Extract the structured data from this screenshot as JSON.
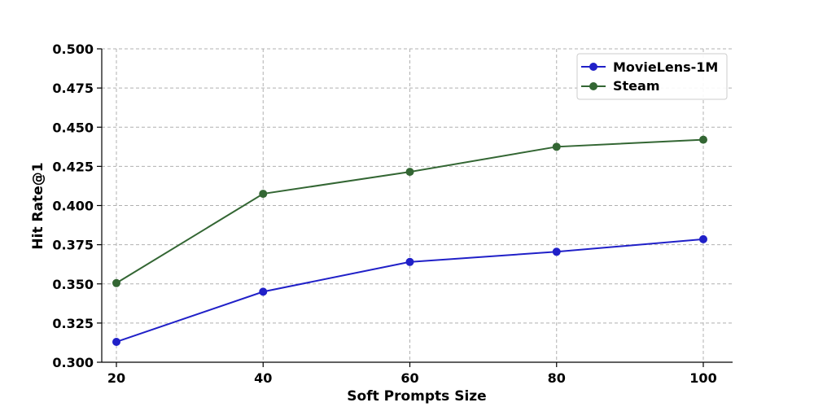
{
  "chart_data": {
    "type": "line",
    "title": "",
    "xlabel": "Soft Prompts Size",
    "ylabel": "Hit Rate@1",
    "x": [
      20,
      40,
      60,
      80,
      100
    ],
    "x_ticks": [
      "20",
      "40",
      "60",
      "80",
      "100"
    ],
    "ylim": [
      0.3,
      0.5
    ],
    "y_ticks": [
      "0.300",
      "0.325",
      "0.350",
      "0.375",
      "0.400",
      "0.425",
      "0.450",
      "0.475",
      "0.500"
    ],
    "grid": true,
    "legend_position": "top-right",
    "series": [
      {
        "name": "MovieLens-1M",
        "color": "#2020c8",
        "values": [
          0.313,
          0.345,
          0.364,
          0.3705,
          0.3785
        ]
      },
      {
        "name": "Steam",
        "color": "#336633",
        "values": [
          0.3505,
          0.4075,
          0.4215,
          0.4375,
          0.442
        ]
      }
    ]
  }
}
